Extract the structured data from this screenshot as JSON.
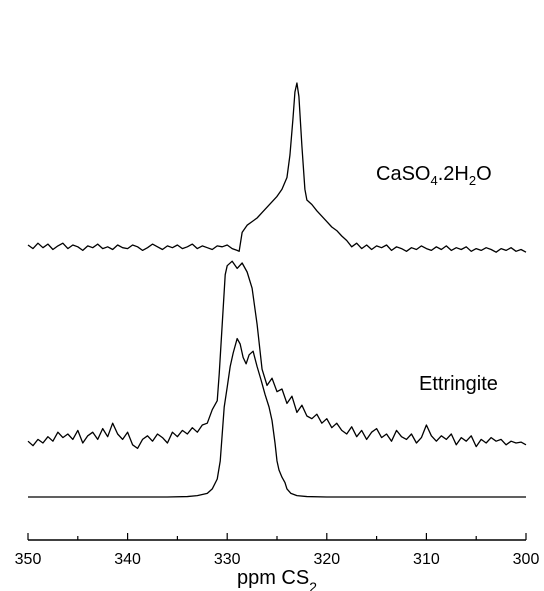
{
  "chart_data": {
    "type": "line",
    "title": "",
    "xlabel": {
      "main": "ppm CS",
      "sub": "2"
    },
    "ylabel": "",
    "xlim": [
      350,
      300
    ],
    "x_reversed": true,
    "x_ticks": [
      350,
      340,
      330,
      320,
      310,
      300
    ],
    "y_axis_shown": false,
    "grid": false,
    "legend": "none",
    "series": [
      {
        "name": "CaSO4.2H2O",
        "label_parts": [
          {
            "text": "CaSO",
            "sub": false
          },
          {
            "text": "4",
            "sub": true
          },
          {
            "text": ".2H",
            "sub": false
          },
          {
            "text": "2",
            "sub": true
          },
          {
            "text": "O",
            "sub": false
          }
        ],
        "offset": 2.7,
        "points": [
          [
            350,
            0.1
          ],
          [
            349.5,
            0.06
          ],
          [
            349,
            0.12
          ],
          [
            348.5,
            0.07
          ],
          [
            348,
            0.11
          ],
          [
            347.5,
            0.05
          ],
          [
            347,
            0.09
          ],
          [
            346.5,
            0.12
          ],
          [
            346,
            0.06
          ],
          [
            345.5,
            0.1
          ],
          [
            345,
            0.08
          ],
          [
            344.5,
            0.04
          ],
          [
            344,
            0.09
          ],
          [
            343.5,
            0.07
          ],
          [
            343,
            0.11
          ],
          [
            342.5,
            0.06
          ],
          [
            342,
            0.08
          ],
          [
            341.5,
            0.05
          ],
          [
            341,
            0.1
          ],
          [
            340.5,
            0.07
          ],
          [
            340,
            0.06
          ],
          [
            339.5,
            0.1
          ],
          [
            339,
            0.08
          ],
          [
            338.5,
            0.04
          ],
          [
            338,
            0.07
          ],
          [
            337.5,
            0.11
          ],
          [
            337,
            0.08
          ],
          [
            336.5,
            0.05
          ],
          [
            336,
            0.09
          ],
          [
            335.5,
            0.07
          ],
          [
            335,
            0.1
          ],
          [
            334.5,
            0.06
          ],
          [
            334,
            0.08
          ],
          [
            333.5,
            0.11
          ],
          [
            333,
            0.06
          ],
          [
            332.5,
            0.09
          ],
          [
            332,
            0.07
          ],
          [
            331.5,
            0.05
          ],
          [
            331,
            0.09
          ],
          [
            330.5,
            0.08
          ],
          [
            330,
            0.1
          ],
          [
            329.5,
            0.06
          ],
          [
            329,
            0.04
          ],
          [
            328.8,
            0.03
          ],
          [
            328.5,
            0.24
          ],
          [
            328,
            0.32
          ],
          [
            327.5,
            0.36
          ],
          [
            327,
            0.4
          ],
          [
            326.5,
            0.46
          ],
          [
            326,
            0.52
          ],
          [
            325.5,
            0.58
          ],
          [
            325,
            0.64
          ],
          [
            324.5,
            0.72
          ],
          [
            324,
            0.85
          ],
          [
            323.7,
            1.1
          ],
          [
            323.4,
            1.5
          ],
          [
            323.2,
            1.8
          ],
          [
            323,
            1.9
          ],
          [
            322.8,
            1.75
          ],
          [
            322.5,
            1.2
          ],
          [
            322.2,
            0.72
          ],
          [
            322,
            0.6
          ],
          [
            321.5,
            0.55
          ],
          [
            321,
            0.48
          ],
          [
            320.5,
            0.42
          ],
          [
            320,
            0.36
          ],
          [
            319.5,
            0.3
          ],
          [
            319,
            0.26
          ],
          [
            318.5,
            0.2
          ],
          [
            318,
            0.15
          ],
          [
            317.5,
            0.08
          ],
          [
            317,
            0.12
          ],
          [
            316.5,
            0.06
          ],
          [
            316,
            0.1
          ],
          [
            315.5,
            0.05
          ],
          [
            315,
            0.09
          ],
          [
            314.5,
            0.07
          ],
          [
            314,
            0.1
          ],
          [
            313.5,
            0.04
          ],
          [
            313,
            0.08
          ],
          [
            312.5,
            0.06
          ],
          [
            312,
            0.03
          ],
          [
            311.5,
            0.07
          ],
          [
            311,
            0.05
          ],
          [
            310.5,
            0.09
          ],
          [
            310,
            0.06
          ],
          [
            309.5,
            0.04
          ],
          [
            309,
            0.08
          ],
          [
            308.5,
            0.05
          ],
          [
            308,
            0.09
          ],
          [
            307.5,
            0.04
          ],
          [
            307,
            0.07
          ],
          [
            306.5,
            0.05
          ],
          [
            306,
            0.08
          ],
          [
            305.5,
            0.03
          ],
          [
            305,
            0.06
          ],
          [
            304.5,
            0.04
          ],
          [
            304,
            0.07
          ],
          [
            303.5,
            0.05
          ],
          [
            303,
            0.02
          ],
          [
            302.5,
            0.06
          ],
          [
            302,
            0.04
          ],
          [
            301.5,
            0.07
          ],
          [
            301,
            0.03
          ],
          [
            300.5,
            0.05
          ],
          [
            300,
            0.02
          ]
        ]
      },
      {
        "name": "Ettringite",
        "label_parts": [
          {
            "text": "Ettringite",
            "sub": false
          }
        ],
        "offset": 0.52,
        "points": [
          [
            350,
            0.1
          ],
          [
            349.5,
            0.05
          ],
          [
            349,
            0.12
          ],
          [
            348.5,
            0.08
          ],
          [
            348,
            0.15
          ],
          [
            347.5,
            0.1
          ],
          [
            347,
            0.2
          ],
          [
            346.5,
            0.14
          ],
          [
            346,
            0.18
          ],
          [
            345.5,
            0.12
          ],
          [
            345,
            0.22
          ],
          [
            344.5,
            0.08
          ],
          [
            344,
            0.16
          ],
          [
            343.5,
            0.2
          ],
          [
            343,
            0.12
          ],
          [
            342.5,
            0.24
          ],
          [
            342,
            0.15
          ],
          [
            341.5,
            0.3
          ],
          [
            341,
            0.18
          ],
          [
            340.5,
            0.12
          ],
          [
            340,
            0.2
          ],
          [
            339.5,
            0.06
          ],
          [
            339,
            0.02
          ],
          [
            338.5,
            0.12
          ],
          [
            338,
            0.16
          ],
          [
            337.5,
            0.1
          ],
          [
            337,
            0.18
          ],
          [
            336.5,
            0.14
          ],
          [
            336,
            0.08
          ],
          [
            335.5,
            0.2
          ],
          [
            335,
            0.15
          ],
          [
            334.5,
            0.22
          ],
          [
            334,
            0.18
          ],
          [
            333.5,
            0.25
          ],
          [
            333,
            0.2
          ],
          [
            332.5,
            0.28
          ],
          [
            332,
            0.3
          ],
          [
            331.5,
            0.45
          ],
          [
            331,
            0.55
          ],
          [
            330.8,
            0.85
          ],
          [
            330.5,
            1.4
          ],
          [
            330.2,
            1.95
          ],
          [
            330,
            2.05
          ],
          [
            329.5,
            2.1
          ],
          [
            329,
            2.02
          ],
          [
            328.5,
            2.08
          ],
          [
            328,
            1.98
          ],
          [
            327.5,
            1.8
          ],
          [
            327,
            1.4
          ],
          [
            326.5,
            0.9
          ],
          [
            326,
            0.72
          ],
          [
            325.5,
            0.8
          ],
          [
            325,
            0.65
          ],
          [
            324.5,
            0.68
          ],
          [
            324,
            0.52
          ],
          [
            323.5,
            0.6
          ],
          [
            323,
            0.42
          ],
          [
            322.5,
            0.5
          ],
          [
            322,
            0.38
          ],
          [
            321.5,
            0.35
          ],
          [
            321,
            0.4
          ],
          [
            320.5,
            0.3
          ],
          [
            320,
            0.35
          ],
          [
            319.5,
            0.25
          ],
          [
            319,
            0.3
          ],
          [
            318.5,
            0.22
          ],
          [
            318,
            0.18
          ],
          [
            317.5,
            0.26
          ],
          [
            317,
            0.15
          ],
          [
            316.5,
            0.22
          ],
          [
            316,
            0.12
          ],
          [
            315.5,
            0.2
          ],
          [
            315,
            0.24
          ],
          [
            314.5,
            0.14
          ],
          [
            314,
            0.18
          ],
          [
            313.5,
            0.1
          ],
          [
            313,
            0.22
          ],
          [
            312.5,
            0.15
          ],
          [
            312,
            0.12
          ],
          [
            311.5,
            0.18
          ],
          [
            311,
            0.08
          ],
          [
            310.5,
            0.14
          ],
          [
            310,
            0.28
          ],
          [
            309.5,
            0.16
          ],
          [
            309,
            0.1
          ],
          [
            308.5,
            0.16
          ],
          [
            308,
            0.12
          ],
          [
            307.5,
            0.18
          ],
          [
            307,
            0.06
          ],
          [
            306.5,
            0.14
          ],
          [
            306,
            0.1
          ],
          [
            305.5,
            0.16
          ],
          [
            305,
            0.04
          ],
          [
            304.5,
            0.12
          ],
          [
            304,
            0.08
          ],
          [
            303.5,
            0.14
          ],
          [
            303,
            0.1
          ],
          [
            302.5,
            0.12
          ],
          [
            302,
            0.06
          ],
          [
            301.5,
            0.1
          ],
          [
            301,
            0.08
          ],
          [
            300.5,
            0.09
          ],
          [
            300,
            0.06
          ]
        ]
      },
      {
        "name": "",
        "label_parts": [],
        "offset": 0,
        "points": [
          [
            350,
            0.0
          ],
          [
            340,
            0.0
          ],
          [
            336,
            0.0
          ],
          [
            334,
            0.005
          ],
          [
            333,
            0.015
          ],
          [
            332,
            0.04
          ],
          [
            331.5,
            0.09
          ],
          [
            331,
            0.2
          ],
          [
            330.7,
            0.4
          ],
          [
            330.5,
            0.7
          ],
          [
            330.3,
            1.0
          ],
          [
            330,
            1.22
          ],
          [
            329.7,
            1.45
          ],
          [
            329.4,
            1.6
          ],
          [
            329,
            1.76
          ],
          [
            328.7,
            1.7
          ],
          [
            328.4,
            1.55
          ],
          [
            328.1,
            1.48
          ],
          [
            327.8,
            1.58
          ],
          [
            327.4,
            1.62
          ],
          [
            327,
            1.45
          ],
          [
            326.6,
            1.3
          ],
          [
            326.2,
            1.14
          ],
          [
            325.8,
            1.0
          ],
          [
            325.5,
            0.85
          ],
          [
            325.2,
            0.6
          ],
          [
            325,
            0.4
          ],
          [
            324.8,
            0.3
          ],
          [
            324.5,
            0.22
          ],
          [
            324.2,
            0.16
          ],
          [
            324,
            0.09
          ],
          [
            323.6,
            0.04
          ],
          [
            323,
            0.015
          ],
          [
            322,
            0.005
          ],
          [
            320,
            0.0
          ],
          [
            300,
            0.0
          ]
        ]
      }
    ]
  }
}
